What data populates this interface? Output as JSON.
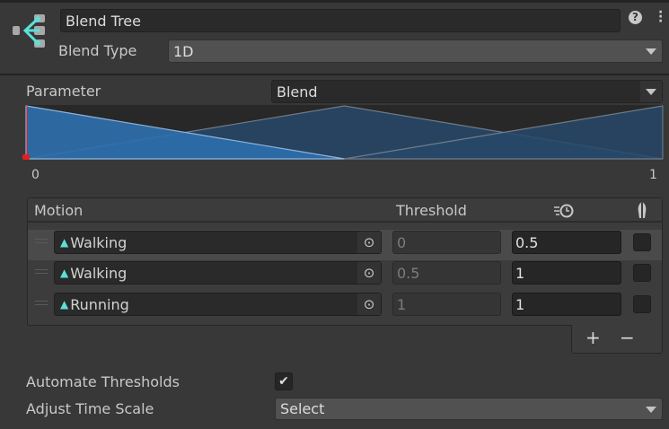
{
  "header": {
    "name": "Blend Tree",
    "blend_type_label": "Blend Type",
    "blend_type_value": "1D",
    "help_icon": "question-icon",
    "menu_icon": "kebab-icon"
  },
  "parameter": {
    "label": "Parameter",
    "value": "Blend"
  },
  "graph": {
    "min_label": "0",
    "max_label": "1",
    "current_value": 0,
    "colors": {
      "selected": "#2d6fae",
      "other": "#27486a",
      "marker": "#e02020"
    }
  },
  "table": {
    "headers": {
      "motion": "Motion",
      "threshold": "Threshold",
      "time_scale_icon": "time-scale-icon",
      "mirror_icon": "mirror-icon"
    },
    "rows": [
      {
        "motion": "Walking",
        "threshold": "0",
        "time_scale": "0.5",
        "mirror": false
      },
      {
        "motion": "Walking",
        "threshold": "0.5",
        "time_scale": "1",
        "mirror": false
      },
      {
        "motion": "Running",
        "threshold": "1",
        "time_scale": "1",
        "mirror": false
      }
    ],
    "add_label": "+",
    "remove_label": "−"
  },
  "automate_thresholds": {
    "label": "Automate Thresholds",
    "checked": true
  },
  "adjust_time_scale": {
    "label": "Adjust Time Scale",
    "value": "Select"
  }
}
